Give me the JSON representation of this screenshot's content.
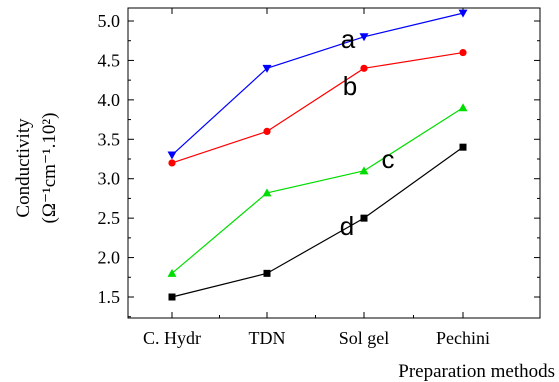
{
  "chart_data": {
    "type": "line",
    "categories": [
      "C. Hydr",
      "TDN",
      "Sol gel",
      "Pechini"
    ],
    "xlabel": "Preparation methods",
    "ylabel_line1": "Conductivity",
    "ylabel_line2": "(Ω⁻¹cm⁻¹.10²)",
    "ylim": [
      1.25,
      5.2
    ],
    "yticks": [
      "1.5",
      "2.0",
      "2.5",
      "3.0",
      "3.5",
      "4.0",
      "4.5",
      "5.0"
    ],
    "grid": false,
    "series": [
      {
        "name": "a",
        "values": [
          3.3,
          4.4,
          4.8,
          5.1
        ],
        "color": "#0000ff",
        "marker": "triangle-down"
      },
      {
        "name": "b",
        "values": [
          3.2,
          3.6,
          4.4,
          4.6
        ],
        "color": "#ff0000",
        "marker": "circle"
      },
      {
        "name": "c",
        "values": [
          1.8,
          2.82,
          3.1,
          3.9
        ],
        "color": "#00dd00",
        "marker": "triangle-up"
      },
      {
        "name": "d",
        "values": [
          1.5,
          1.8,
          2.5,
          3.4
        ],
        "color": "#000000",
        "marker": "square"
      }
    ]
  }
}
